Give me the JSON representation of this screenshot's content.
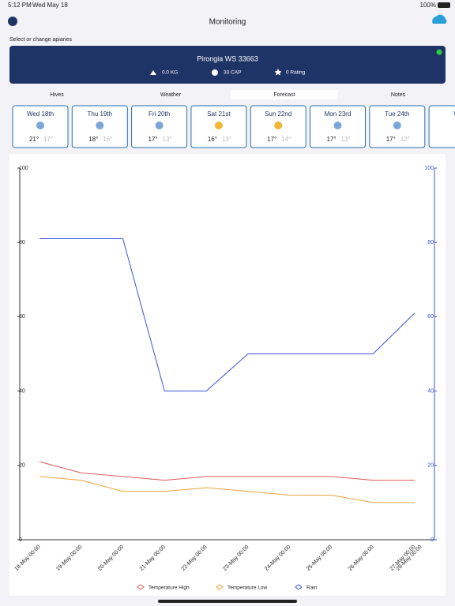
{
  "status_bar": {
    "time": "5:12 PM",
    "date": "Wed May 18",
    "battery": "100%"
  },
  "header": {
    "title": "Monitoring"
  },
  "apiary": {
    "prompt": "Select or change apiaries",
    "name": "Pirongia WS 33663",
    "weight": "0.0 KG",
    "capacity": "33 CAP",
    "rating": "0 Rating"
  },
  "tabs": [
    "Hives",
    "Weather",
    "Forecast",
    "Notes"
  ],
  "forecast": [
    {
      "day": "Wed 18th",
      "high": "21°",
      "low": "17°"
    },
    {
      "day": "Thu 19th",
      "high": "18°",
      "low": "16°"
    },
    {
      "day": "Fri 20th",
      "high": "17°",
      "low": "13°"
    },
    {
      "day": "Sat 21st",
      "high": "16°",
      "low": "13°"
    },
    {
      "day": "Sun 22nd",
      "high": "17°",
      "low": "14°"
    },
    {
      "day": "Mon 23rd",
      "high": "17°",
      "low": "13°"
    },
    {
      "day": "Tue 24th",
      "high": "17°",
      "low": "12°"
    },
    {
      "day": "W",
      "high": "",
      "low": ""
    }
  ],
  "chart_data": {
    "type": "line",
    "categories": [
      "18-May 00:00",
      "19-May 00:00",
      "20-May 00:00",
      "21-May 00:00",
      "22-May 00:00",
      "23-May 00:00",
      "24-May 00:00",
      "25-May 00:00",
      "26-May 00:00",
      "27-May 00:00",
      "28-May 00:00"
    ],
    "series": [
      {
        "name": "Temperature High",
        "color": "#e05a5a",
        "values": [
          21,
          18,
          17,
          16,
          17,
          17,
          17,
          17,
          16,
          16,
          null
        ]
      },
      {
        "name": "Temperature Low",
        "color": "#e8a33a",
        "values": [
          17,
          16,
          13,
          13,
          14,
          13,
          12,
          12,
          10,
          10,
          null
        ]
      },
      {
        "name": "Rain",
        "color": "#3a55d6",
        "axis": "y2",
        "values": [
          81,
          81,
          81,
          40,
          40,
          50,
          50,
          50,
          50,
          61,
          null
        ]
      }
    ],
    "ylim": [
      0,
      100
    ],
    "yticks": [
      0,
      20,
      40,
      60,
      80,
      100
    ],
    "y2lim": [
      0,
      100
    ],
    "y2ticks": [
      0,
      20,
      40,
      60,
      80,
      100
    ],
    "y2color": "#3a55d6",
    "legend": "bottom"
  }
}
